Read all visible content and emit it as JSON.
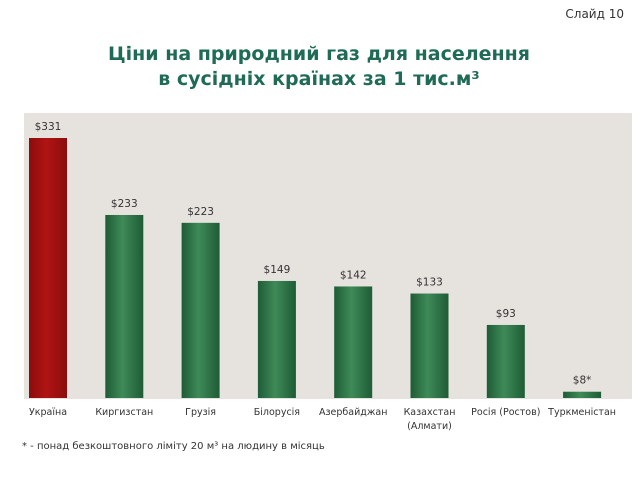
{
  "slide_label": "Слайд 10",
  "title_line1": "Ціни на природний газ для населення",
  "title_line2": "в сусідніх країнах за 1 тис.м³",
  "footnote": "* - понад безкоштовного ліміту 20 м³ на людину в місяць",
  "colors": {
    "highlight_bar": "#8b0d0d",
    "highlight_bar_light": "#b01414",
    "bar": "#1e5c36",
    "bar_light": "#3f8a58",
    "plot_bg": "#e6e3de",
    "title": "#1f6b55"
  },
  "chart_data": {
    "type": "bar",
    "title": "Ціни на природний газ для населення в сусідніх країнах за 1 тис.м³",
    "categories": [
      "Україна",
      "Киргизстан",
      "Грузія",
      "Білорусія",
      "Азербайджан",
      "Казахстан (Алмати)",
      "Росія (Ростов)",
      "Туркменістан"
    ],
    "category_lines": [
      [
        "Україна"
      ],
      [
        "Киргизстан"
      ],
      [
        "Грузія"
      ],
      [
        "Білорусія"
      ],
      [
        "Азербайджан"
      ],
      [
        "Казахстан",
        "(Алмати)"
      ],
      [
        "Росія (Ростов)"
      ],
      [
        "Туркменістан"
      ]
    ],
    "values": [
      331,
      233,
      223,
      149,
      142,
      133,
      93,
      8
    ],
    "data_labels": [
      "$331",
      "$233",
      "$223",
      "$149",
      "$142",
      "$133",
      "$93",
      "$8*"
    ],
    "highlight_index": 0,
    "ylim": [
      0,
      331
    ],
    "grid": false,
    "legend": false
  }
}
